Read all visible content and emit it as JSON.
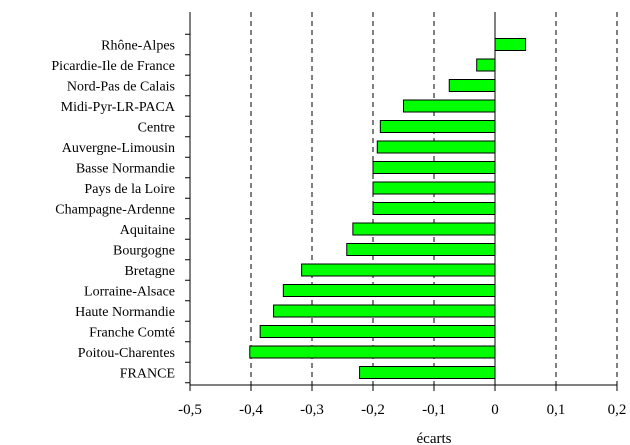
{
  "chart_data": {
    "type": "bar",
    "orientation": "horizontal",
    "categories": [
      "Rhône-Alpes",
      "Picardie-Ile de France",
      "Nord-Pas de Calais",
      "Midi-Pyr-LR-PACA",
      "Centre",
      "Auvergne-Limousin",
      "Basse Normandie",
      "Pays de la Loire",
      "Champagne-Ardenne",
      "Aquitaine",
      "Bourgogne",
      "Bretagne",
      "Lorraine-Alsace",
      "Haute Normandie",
      "Franche Comté",
      "Poitou-Charentes",
      "FRANCE"
    ],
    "values": [
      0.05,
      -0.03,
      -0.075,
      -0.15,
      -0.188,
      -0.193,
      -0.2,
      -0.2,
      -0.2,
      -0.233,
      -0.243,
      -0.317,
      -0.347,
      -0.363,
      -0.385,
      -0.402,
      -0.222
    ],
    "xlabel": "écarts",
    "ylabel": "",
    "title": "",
    "xlim": [
      -0.5,
      0.2
    ],
    "xticks": [
      "-0,5",
      "-0,4",
      "-0,3",
      "-0,2",
      "-0,1",
      "0",
      "0,1",
      "0,2"
    ],
    "tick_values": [
      -0.5,
      -0.4,
      -0.3,
      -0.2,
      -0.1,
      0,
      0.1,
      0.2
    ],
    "grid": "vertical dashed lines",
    "bar_color": "#00ff00",
    "bar_edge_color": "#000000"
  }
}
